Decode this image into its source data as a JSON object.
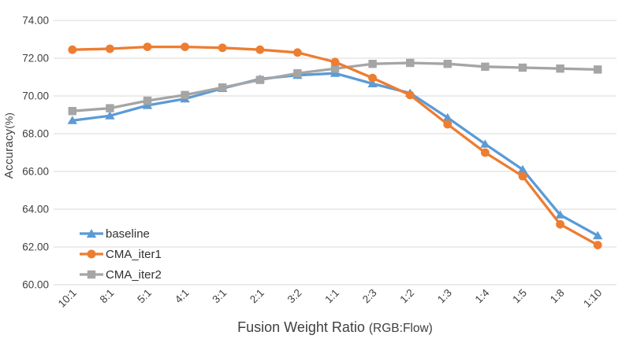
{
  "chart_data": {
    "type": "line",
    "title": "",
    "x_axis": {
      "title_main": "Fusion Weight Ratio ",
      "title_paren": "(RGB:Flow)",
      "categories": [
        "10:1",
        "8:1",
        "5:1",
        "4:1",
        "3:1",
        "2:1",
        "3:2",
        "1:1",
        "2:3",
        "1:2",
        "1:3",
        "1:4",
        "1:5",
        "1:8",
        "1:10"
      ]
    },
    "y_axis": {
      "title_main": "Accuracy",
      "title_paren": "(%)",
      "min": 60,
      "max": 74,
      "step": 2,
      "tick_labels": [
        "60.00",
        "62.00",
        "64.00",
        "66.00",
        "68.00",
        "70.00",
        "72.00",
        "74.00"
      ]
    },
    "grid": "horizontal",
    "legend_position": "inside-bottom-left",
    "series": [
      {
        "name": "baseline",
        "color": "#5B9BD5",
        "marker": "triangle",
        "values": [
          68.7,
          68.95,
          69.5,
          69.85,
          70.4,
          70.9,
          71.1,
          71.2,
          70.65,
          70.15,
          68.85,
          67.45,
          66.1,
          63.7,
          62.6
        ]
      },
      {
        "name": "CMA_iter1",
        "color": "#ED7D31",
        "marker": "circle",
        "values": [
          72.45,
          72.5,
          72.6,
          72.6,
          72.55,
          72.45,
          72.3,
          71.8,
          70.95,
          70.05,
          68.5,
          67.0,
          65.75,
          63.2,
          62.1
        ]
      },
      {
        "name": "CMA_iter2",
        "color": "#A5A5A5",
        "marker": "square",
        "values": [
          69.2,
          69.35,
          69.75,
          70.05,
          70.45,
          70.85,
          71.2,
          71.45,
          71.7,
          71.75,
          71.7,
          71.55,
          71.5,
          71.45,
          71.4
        ]
      }
    ],
    "colors": {
      "gridline": "#D9D9D9",
      "tick_text": "#404040",
      "title_text": "#3f3f3f"
    }
  }
}
